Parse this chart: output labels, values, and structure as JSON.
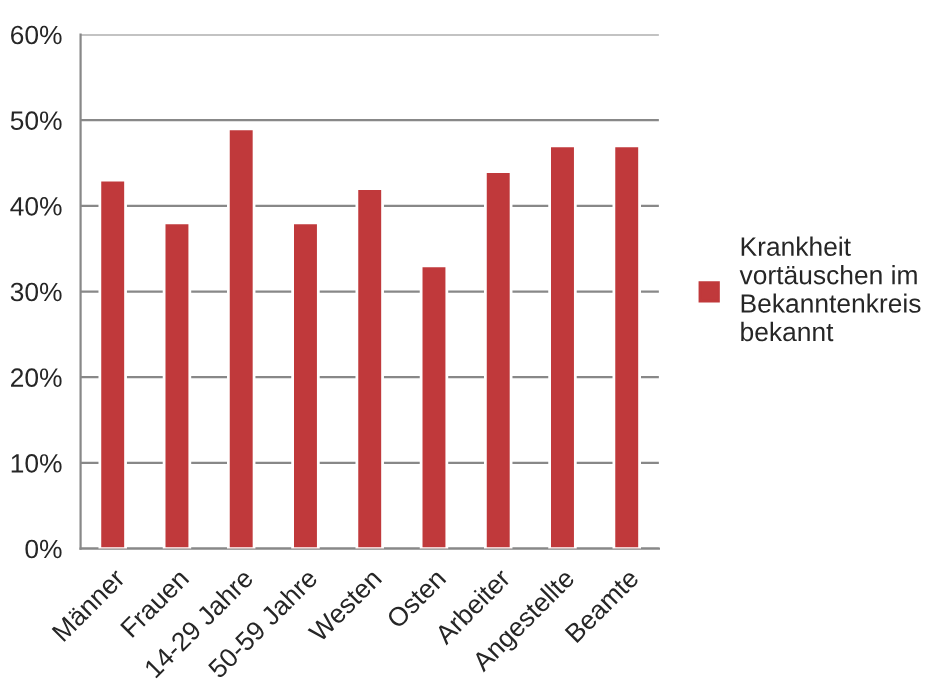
{
  "chart_data": {
    "type": "bar",
    "categories": [
      "Männer",
      "Frauen",
      "14-29 Jahre",
      "50-59 Jahre",
      "Westen",
      "Osten",
      "Arbeiter",
      "Angestellte",
      "Beamte"
    ],
    "series": [
      {
        "name": "Krankheit vortäuschen im Bekanntenkreis bekannt",
        "color": "#c0393b",
        "values": [
          43,
          38,
          49,
          38,
          42,
          33,
          44,
          47,
          47
        ]
      }
    ],
    "ylim": [
      0,
      60
    ],
    "yticks": [
      {
        "value": 0,
        "label": "0%"
      },
      {
        "value": 10,
        "label": "10%"
      },
      {
        "value": 20,
        "label": "20%"
      },
      {
        "value": 30,
        "label": "30%"
      },
      {
        "value": 40,
        "label": "40%"
      },
      {
        "value": 50,
        "label": "50%"
      },
      {
        "value": 60,
        "label": "60%"
      }
    ],
    "grid": "y",
    "legend": "right"
  }
}
